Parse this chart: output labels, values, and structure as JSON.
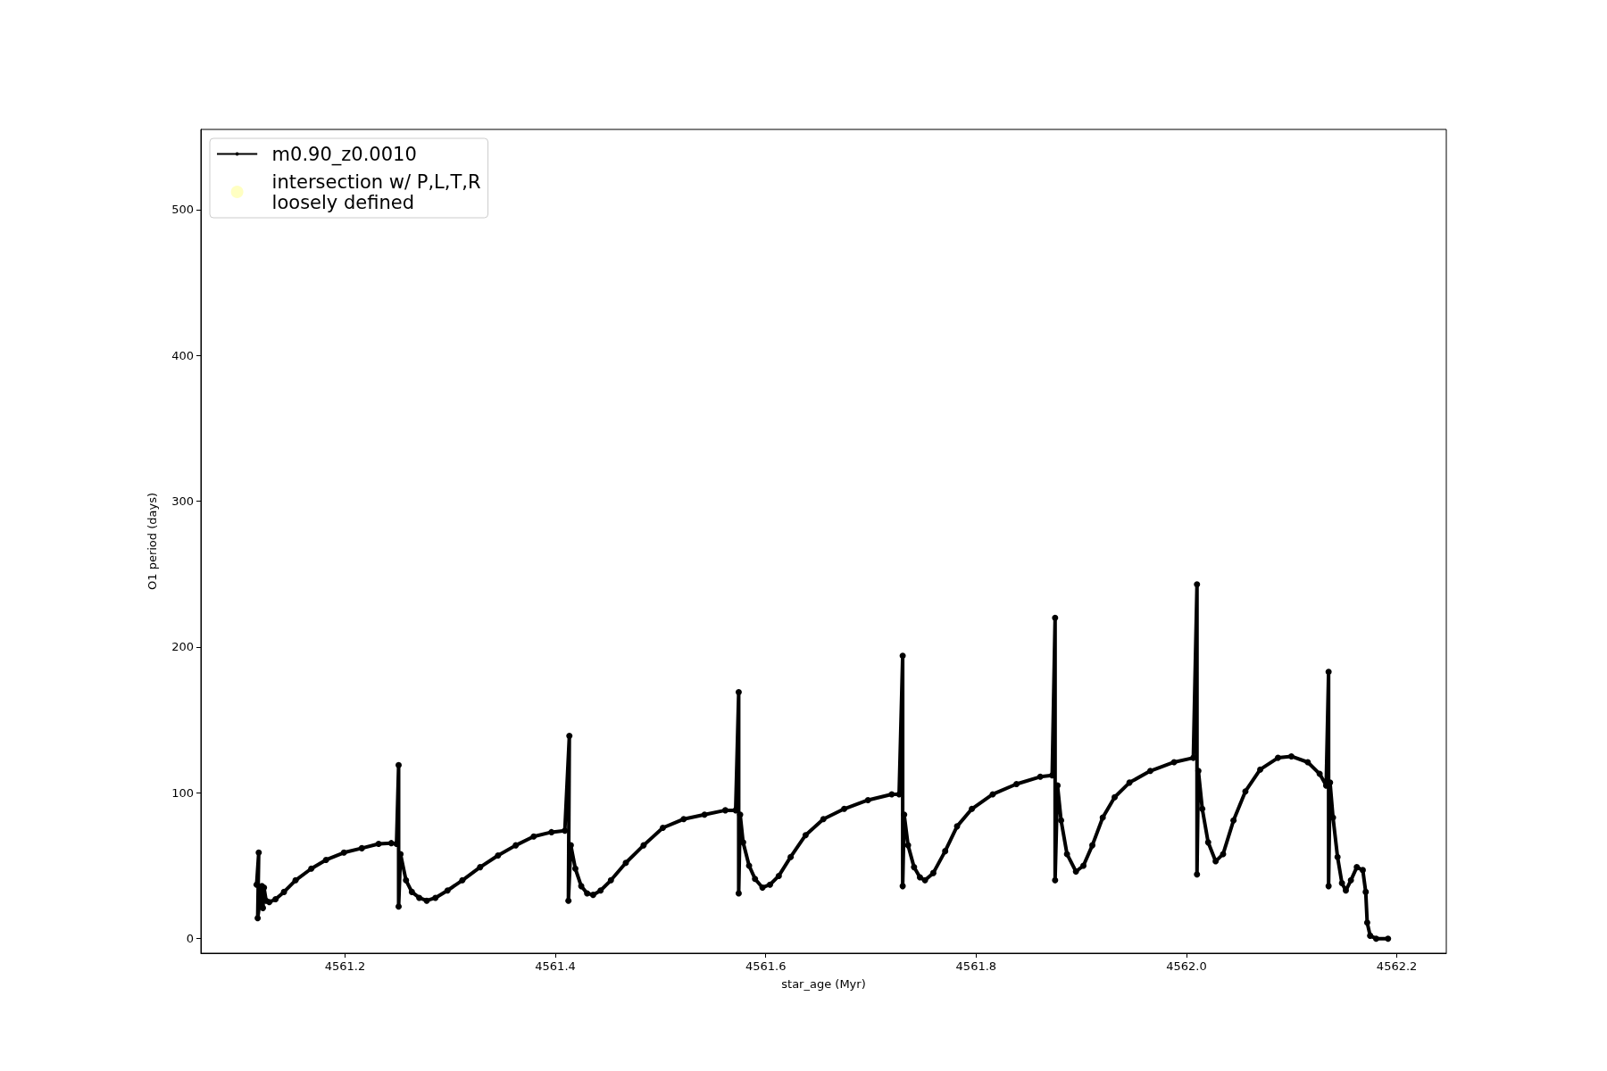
{
  "chart_data": {
    "type": "line",
    "xlabel": "star_age (Myr)",
    "ylabel": "O1 period (days)",
    "xlim": [
      4561.063,
      4562.247
    ],
    "xticks": [
      4561.2,
      4561.4,
      4561.6,
      4561.8,
      {
        "value": 4562,
        "label": "4562.0"
      },
      4562.2
    ],
    "ylim": [
      -10,
      555
    ],
    "yticks": [
      0,
      100,
      200,
      300,
      400,
      500
    ],
    "grid": false,
    "legend": "top left",
    "marker": "circle",
    "line_style": "solid",
    "series": [
      {
        "name": "m0.90_z0.0010",
        "color": "#000000",
        "x": [
          4561.116,
          4561.118,
          4561.117,
          4561.121,
          4561.122,
          4561.123,
          4561.125,
          4561.128,
          4561.134,
          4561.142,
          4561.153,
          4561.168,
          4561.182,
          4561.199,
          4561.216,
          4561.232,
          4561.244,
          4561.249,
          4561.251,
          4561.251,
          4561.2528,
          4561.258,
          4561.2636,
          4561.2706,
          4561.2777,
          4561.286,
          4561.2975,
          4561.3116,
          4561.3285,
          4561.3455,
          4561.3624,
          4561.3794,
          4561.3963,
          4561.409,
          4561.4133,
          4561.4124,
          4561.4147,
          4561.419,
          4561.4246,
          4561.4302,
          4561.4359,
          4561.443,
          4561.4528,
          4561.467,
          4561.4839,
          4561.5022,
          4561.522,
          4561.5418,
          4561.5616,
          4561.5714,
          4561.5743,
          4561.5743,
          4561.5757,
          4561.5785,
          4561.5842,
          4561.5898,
          4561.5969,
          4561.604,
          4561.6124,
          4561.6237,
          4561.6379,
          4561.6548,
          4561.6746,
          4561.6972,
          4561.7198,
          4561.7268,
          4561.7302,
          4561.7302,
          4561.7316,
          4561.7353,
          4561.741,
          4561.7466,
          4561.7514,
          4561.7593,
          4561.7706,
          4561.7819,
          4561.796,
          4561.8158,
          4561.8384,
          4561.861,
          4561.8723,
          4561.8751,
          4561.8751,
          4561.8774,
          4561.8808,
          4561.8864,
          4561.8949,
          4561.902,
          4561.9105,
          4561.9204,
          4561.9317,
          4561.9458,
          4561.9656,
          4561.9882,
          4562.0065,
          4562.01,
          4562.01,
          4562.0113,
          4562.015,
          4562.0206,
          4562.0277,
          4562.0348,
          4562.0447,
          4562.056,
          4562.0701,
          4562.087,
          4562.0997,
          4562.1153,
          4562.1266,
          4562.1328,
          4562.1351,
          4562.1351,
          4562.1365,
          4562.1393,
          4562.1436,
          4562.1478,
          4562.1515,
          4562.1563,
          4562.1619,
          4562.1676,
          4562.1704,
          4562.1718,
          4562.1746,
          4562.1803,
          4562.1916
        ],
        "values": [
          37,
          59,
          14,
          36,
          21,
          35,
          26,
          25,
          27,
          32,
          40,
          48,
          54,
          59,
          62,
          65,
          65.5,
          65,
          119,
          22,
          58,
          40,
          32,
          28,
          26,
          28,
          33,
          40,
          49,
          57,
          64,
          70,
          73,
          74,
          139,
          26,
          64,
          48,
          36,
          31,
          30,
          33,
          40,
          52,
          64,
          76,
          82,
          85,
          88,
          88,
          169,
          31,
          85,
          66,
          50,
          41,
          35,
          37,
          43,
          56,
          71,
          82,
          89,
          95,
          99,
          99,
          194,
          36,
          85,
          64,
          49,
          42,
          40,
          45,
          60,
          77,
          89,
          99,
          106,
          111,
          112,
          220,
          40,
          105,
          81,
          58,
          46,
          50,
          64,
          83,
          97,
          107,
          115,
          121,
          124,
          243,
          44,
          115,
          89,
          66,
          53,
          58,
          81,
          101,
          116,
          124,
          125,
          121,
          113,
          105,
          183,
          36,
          107,
          83,
          56,
          38,
          33,
          40,
          49,
          47,
          32,
          11,
          2,
          0,
          0
        ]
      },
      {
        "name": "intersection w/ P,L,T,R\nloosely defined",
        "color": "#ffffb3",
        "type": "scatter"
      }
    ]
  }
}
